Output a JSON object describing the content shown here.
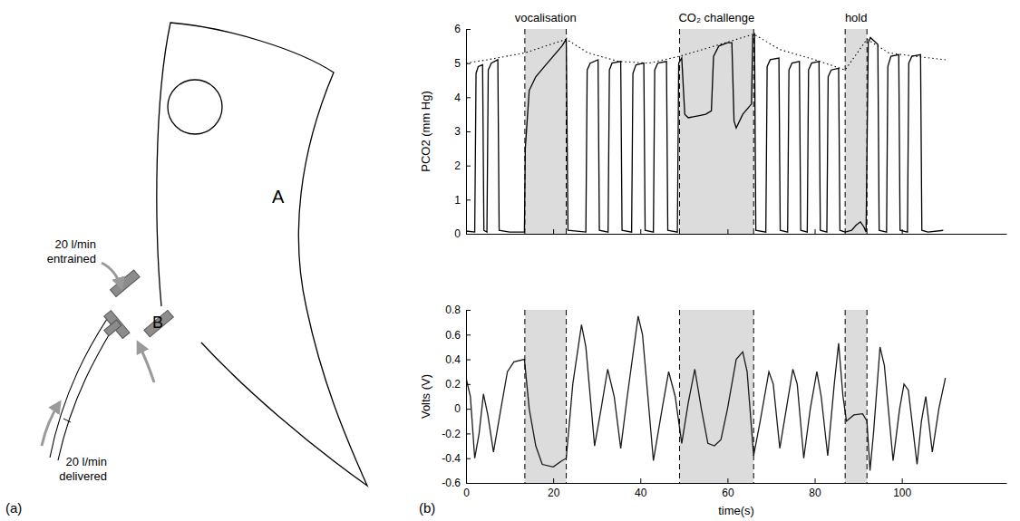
{
  "diagram": {
    "panel_label": "(a)",
    "parts": [
      {
        "label": "A"
      },
      {
        "label": "B"
      }
    ],
    "flows": [
      {
        "lines": [
          "20 l/min",
          "entrained"
        ]
      },
      {
        "lines": [
          "20 l/min",
          "delivered"
        ]
      }
    ]
  },
  "chart_panel_label": "(b)",
  "chart_data": [
    {
      "type": "line",
      "y_label": "PCO2 (mm Hg)",
      "xlim": [
        0,
        124
      ],
      "xticks": [
        0,
        20,
        40,
        60,
        80,
        100
      ],
      "ylim": [
        0,
        6
      ],
      "yticks": [
        0,
        1,
        2,
        3,
        4,
        5,
        6
      ],
      "tick_labels": "y",
      "regions": [
        {
          "label": "vocalisation",
          "x": [
            13.5,
            23
          ]
        },
        {
          "label": "CO₂ challenge",
          "x": [
            49,
            66
          ]
        },
        {
          "label": "hold",
          "x": [
            87,
            92
          ]
        }
      ],
      "series": [
        {
          "color": "#000000",
          "x": [
            0,
            2.0,
            2.3,
            2.8,
            3.8,
            4.1,
            4.8,
            5.1,
            5.8,
            7.3,
            7.6,
            10,
            13.4,
            13.6,
            14.5,
            16,
            18,
            20,
            22,
            23,
            23.4,
            27.5,
            27.8,
            28.5,
            30.3,
            30.6,
            32.6,
            32.9,
            33.5,
            35.5,
            35.8,
            38,
            38.3,
            39,
            40.8,
            41.1,
            43,
            43.3,
            44,
            46,
            46.3,
            48.5,
            48.8,
            49.5,
            50.2,
            51,
            53,
            55,
            56.3,
            56.8,
            58,
            60,
            61,
            61.5,
            62,
            63.5,
            65.5,
            65.8,
            66.2,
            66.5,
            68.8,
            69.1,
            69.8,
            71.8,
            72.1,
            73.8,
            74.1,
            74.8,
            76.5,
            76.8,
            78.3,
            78.6,
            79.3,
            81,
            81.3,
            82.8,
            83.1,
            83.8,
            85.5,
            85.8,
            87,
            88.5,
            89.5,
            90.5,
            91.3,
            91.8,
            92.3,
            92.8,
            94.5,
            94.8,
            96.5,
            96.8,
            97.5,
            99.3,
            99.6,
            101.3,
            101.6,
            102.3,
            104.3,
            104.6,
            106,
            109.5
          ],
          "values": [
            0.08,
            0.05,
            4.7,
            4.9,
            4.95,
            0.1,
            0.05,
            4.8,
            5.0,
            5.1,
            0.1,
            0.05,
            0.05,
            2.5,
            4.2,
            4.6,
            4.9,
            5.2,
            5.5,
            5.7,
            0.1,
            0.05,
            4.8,
            5.0,
            5.1,
            0.1,
            0.05,
            4.8,
            5.0,
            5.05,
            0.1,
            0.05,
            4.7,
            4.95,
            5.0,
            0.1,
            0.05,
            4.8,
            5.0,
            5.05,
            0.1,
            0.05,
            5.0,
            5.15,
            3.5,
            3.4,
            3.45,
            3.5,
            3.6,
            5.2,
            5.5,
            5.6,
            5.6,
            3.3,
            3.1,
            3.5,
            3.8,
            5.8,
            5.85,
            0.1,
            0.05,
            4.9,
            5.1,
            5.15,
            0.1,
            0.05,
            4.8,
            5.0,
            5.05,
            0.1,
            0.05,
            4.8,
            5.0,
            5.05,
            0.1,
            0.05,
            4.6,
            4.8,
            4.85,
            0.1,
            0.05,
            0.1,
            0.25,
            0.35,
            0.2,
            0.05,
            5.6,
            5.75,
            5.55,
            0.1,
            0.05,
            4.9,
            5.2,
            5.25,
            0.1,
            0.05,
            5.0,
            5.2,
            5.25,
            0.1,
            0.05,
            0.1
          ]
        },
        {
          "color": "#000000",
          "line_style": "dotted",
          "x": [
            0,
            5,
            13.5,
            23,
            28,
            35,
            42,
            49,
            57,
            66,
            72,
            80,
            87,
            92,
            97,
            103,
            110
          ],
          "values": [
            5.0,
            5.1,
            5.3,
            5.7,
            5.3,
            5.05,
            5.0,
            5.2,
            5.5,
            5.85,
            5.4,
            5.1,
            4.8,
            5.7,
            5.3,
            5.2,
            5.1
          ]
        }
      ]
    },
    {
      "type": "line",
      "x_label": "time(s)",
      "y_label": "Volts (V)",
      "xlim": [
        0,
        124
      ],
      "xticks": [
        0,
        20,
        40,
        60,
        80,
        100
      ],
      "ylim": [
        -0.6,
        0.8
      ],
      "yticks": [
        -0.6,
        -0.4,
        -0.2,
        0,
        0.2,
        0.4,
        0.6,
        0.8
      ],
      "regions": [
        {
          "x": [
            13.5,
            23
          ]
        },
        {
          "x": [
            49,
            66
          ]
        },
        {
          "x": [
            87,
            92
          ]
        }
      ],
      "series": [
        {
          "color": "#1a1a1a",
          "x": [
            0,
            1,
            2,
            3,
            4,
            5,
            6.3,
            8,
            9.5,
            11,
            13.4,
            14.5,
            16,
            17.5,
            20,
            22,
            23,
            24.5,
            26.5,
            27.5,
            29.5,
            31,
            32.5,
            34,
            35.5,
            37,
            39.5,
            40.5,
            43,
            45,
            46.5,
            48,
            49.5,
            51,
            52.5,
            54,
            55.5,
            57,
            58.5,
            60,
            62,
            63.5,
            64.5,
            66,
            67.5,
            69.5,
            70.5,
            72,
            73.5,
            75,
            76,
            77.5,
            79,
            80.5,
            81.5,
            83,
            84.5,
            85.5,
            86.5,
            87.3,
            89,
            91,
            92,
            92.7,
            93.5,
            95,
            96,
            98,
            99.5,
            100.5,
            101.5,
            103.5,
            104.5,
            105.5,
            107,
            108.5,
            110
          ],
          "values": [
            0.25,
            0.1,
            -0.4,
            -0.2,
            0.12,
            -0.05,
            -0.35,
            0.0,
            0.3,
            0.38,
            0.4,
            0.0,
            -0.3,
            -0.45,
            -0.47,
            -0.42,
            -0.4,
            0.2,
            0.68,
            0.5,
            -0.3,
            0.0,
            0.32,
            0.1,
            -0.32,
            0.1,
            0.75,
            0.6,
            -0.42,
            0.0,
            0.3,
            0.1,
            -0.28,
            0.05,
            0.32,
            0.0,
            -0.28,
            -0.3,
            -0.25,
            0.0,
            0.4,
            0.46,
            0.3,
            -0.38,
            -0.1,
            0.3,
            0.2,
            -0.32,
            0.0,
            0.32,
            0.2,
            -0.4,
            0.0,
            0.3,
            0.1,
            -0.38,
            0.2,
            0.53,
            0.1,
            -0.1,
            -0.05,
            -0.04,
            -0.1,
            -0.5,
            -0.2,
            0.5,
            0.35,
            -0.42,
            0.0,
            0.2,
            0.15,
            -0.45,
            -0.1,
            0.1,
            -0.35,
            0.0,
            0.25
          ]
        }
      ]
    }
  ]
}
